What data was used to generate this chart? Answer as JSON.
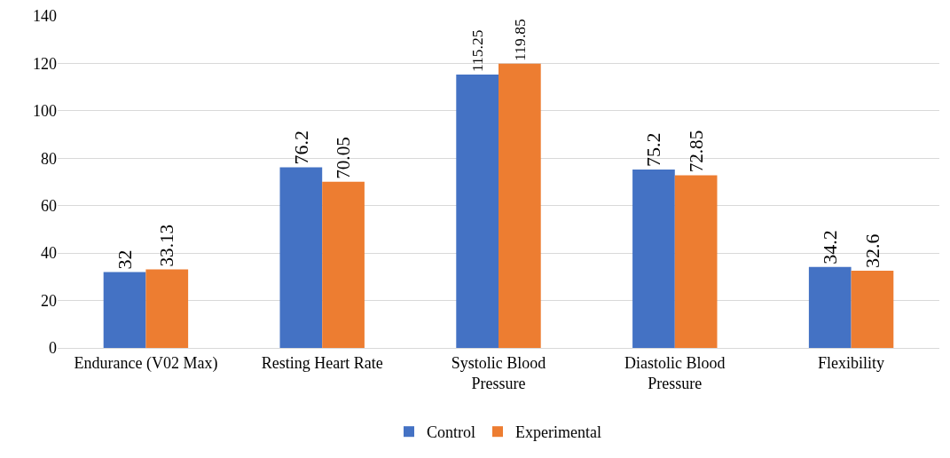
{
  "chart_data": {
    "type": "bar",
    "categories": [
      "Endurance (V02 Max)",
      "Resting Heart Rate",
      "Systolic Blood Pressure",
      "Diastolic Blood Pressure",
      "Flexibility"
    ],
    "series": [
      {
        "name": "Control",
        "color": "#4472c4",
        "values": [
          32,
          76.2,
          115.25,
          75.2,
          34.2
        ]
      },
      {
        "name": "Experimental",
        "color": "#ed7d31",
        "values": [
          33.13,
          70.05,
          119.85,
          72.85,
          32.6
        ]
      }
    ],
    "ylim": [
      0,
      140
    ],
    "yticks": [
      0,
      20,
      40,
      60,
      80,
      100,
      120,
      140
    ],
    "grid": "y",
    "legend": "bottom",
    "data_labels": true
  }
}
